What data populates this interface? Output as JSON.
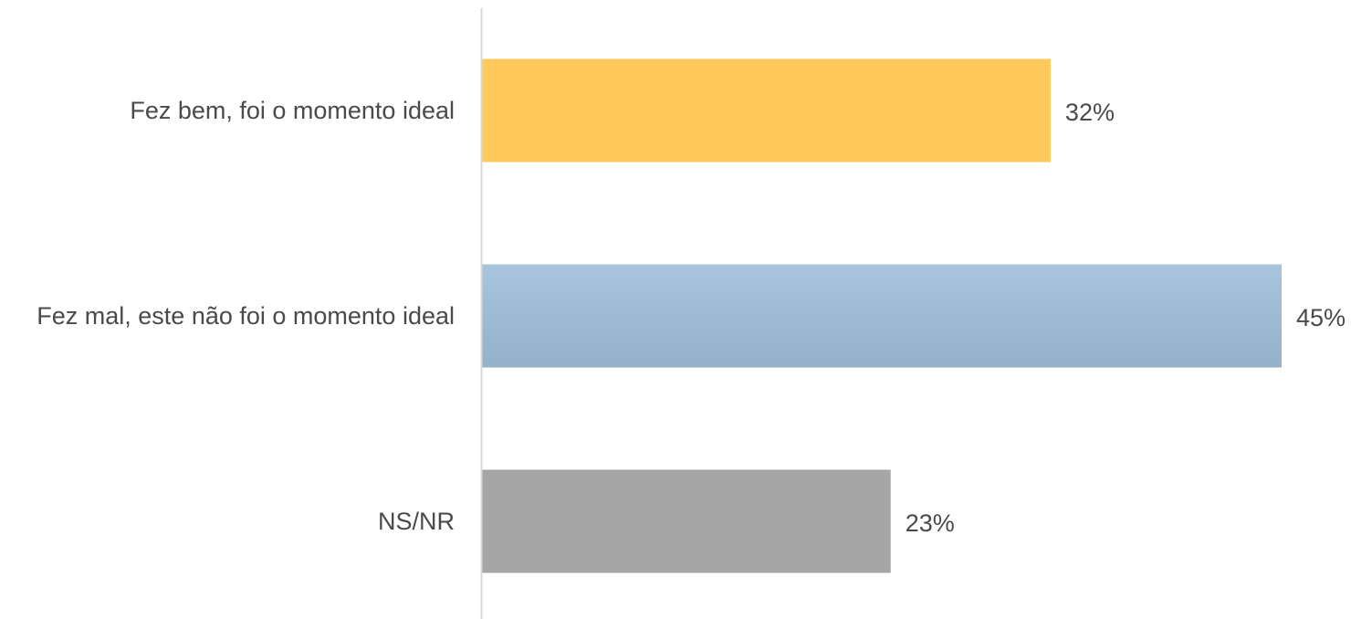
{
  "chart_data": {
    "type": "bar",
    "orientation": "horizontal",
    "title": "",
    "xlabel": "",
    "ylabel": "",
    "categories": [
      "Fez bem, foi o momento ideal",
      "Fez mal, este não foi o momento ideal",
      "NS/NR"
    ],
    "values": [
      32,
      45,
      23
    ],
    "value_labels": [
      "32%",
      "45%",
      "23%"
    ],
    "unit": "%",
    "colors": [
      "#ffc95c",
      "#a9c5de",
      "#a6a6a6"
    ],
    "gradient_bottom_color": "#95b1ca",
    "axis_color": "#d9d9d9",
    "grid": false,
    "legend": "none"
  }
}
